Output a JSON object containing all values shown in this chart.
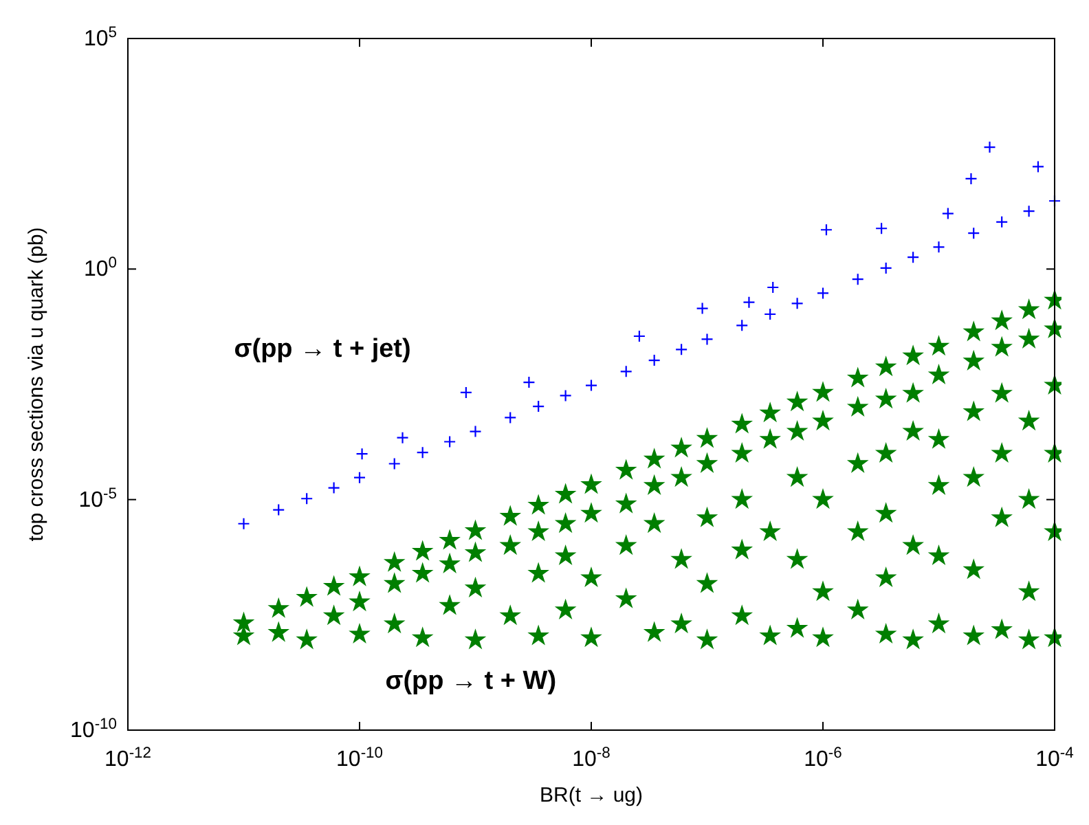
{
  "chart_data": {
    "type": "scatter",
    "xlabel": "BR(t → ug)",
    "ylabel": "top cross sections via u quark (pb)",
    "log": "xy",
    "xlim": [
      1e-12,
      0.0001
    ],
    "xticks": [
      {
        "value": 1e-12,
        "label": "10$^{-12}$"
      },
      {
        "value": 1e-10,
        "label": "10$^{-10}$"
      },
      {
        "value": 1e-08,
        "label": "10$^{-8}$"
      },
      {
        "value": 1e-06,
        "label": "10$^{-6}$"
      },
      {
        "value": 0.0001,
        "label": "10$^{-4}$"
      }
    ],
    "ylim": [
      1e-10,
      100000.0
    ],
    "yticks": [
      {
        "value": 1e-10,
        "label": "10$^{-10}$"
      },
      {
        "value": 1e-05,
        "label": "10$^{-5}$"
      },
      {
        "value": 1,
        "label": "10$^{0}$"
      },
      {
        "value": 100000.0,
        "label": "10$^{5}$"
      }
    ],
    "grid": false,
    "series": [
      {
        "name": "σ(pp → t + jet)",
        "color": "#0000ff",
        "marker": "cross",
        "x": [
          1e-11,
          2e-11,
          3.5e-11,
          6e-11,
          1e-10,
          2e-10,
          3.5e-10,
          6e-10,
          1e-09,
          2e-09,
          3.5e-09,
          6e-09,
          1e-08,
          2e-08,
          3.5e-08,
          6e-08,
          1e-07,
          2e-07,
          3.5e-07,
          6e-07,
          1e-06,
          2e-06,
          3.5e-06,
          6e-06,
          1e-05,
          2e-05,
          3.5e-05,
          6e-05,
          0.0001,
          2.75e-05,
          1.9e-05,
          7.2e-05,
          1.07e-06,
          3.2e-06,
          9.1e-08,
          2.6e-08,
          8.3e-10,
          2.9e-09,
          1.05e-10,
          2.35e-10,
          3.7e-07,
          2.3e-07,
          1.2e-05
        ],
        "values": [
          3e-06,
          6e-06,
          1.05e-05,
          1.8e-05,
          3e-05,
          6e-05,
          0.000105,
          0.00018,
          0.0003,
          0.0006,
          0.00105,
          0.0018,
          0.003,
          0.006,
          0.0105,
          0.018,
          0.03,
          0.06,
          0.105,
          0.18,
          0.3,
          0.6,
          1.05,
          1.8,
          3,
          6,
          10.5,
          18,
          30,
          440,
          91,
          166,
          7.1,
          7.6,
          0.14,
          0.035,
          0.0021,
          0.0035,
          9.8e-05,
          0.00022,
          0.4,
          0.19,
          16
        ]
      },
      {
        "name": "σ(pp → t + W)",
        "color": "#007f00",
        "marker": "star",
        "x": [
          1e-11,
          1e-11,
          2e-11,
          2e-11,
          3.5e-11,
          3.5e-11,
          6e-11,
          6e-11,
          1e-10,
          1e-10,
          1e-10,
          2e-10,
          2e-10,
          2e-10,
          3.5e-10,
          3.5e-10,
          3.5e-10,
          6e-10,
          6e-10,
          6e-10,
          1e-09,
          1e-09,
          1e-09,
          1e-09,
          2e-09,
          2e-09,
          2e-09,
          3.5e-09,
          3.5e-09,
          3.5e-09,
          3.5e-09,
          6e-09,
          6e-09,
          6e-09,
          6e-09,
          1e-08,
          1e-08,
          1e-08,
          1e-08,
          2e-08,
          2e-08,
          2e-08,
          2e-08,
          3.5e-08,
          3.5e-08,
          3.5e-08,
          3.5e-08,
          6e-08,
          6e-08,
          6e-08,
          6e-08,
          1e-07,
          1e-07,
          1e-07,
          1e-07,
          1e-07,
          2e-07,
          2e-07,
          2e-07,
          2e-07,
          2e-07,
          3.5e-07,
          3.5e-07,
          3.5e-07,
          3.5e-07,
          6e-07,
          6e-07,
          6e-07,
          6e-07,
          6e-07,
          1e-06,
          1e-06,
          1e-06,
          1e-06,
          1e-06,
          2e-06,
          2e-06,
          2e-06,
          2e-06,
          2e-06,
          3.5e-06,
          3.5e-06,
          3.5e-06,
          3.5e-06,
          3.5e-06,
          3.5e-06,
          6e-06,
          6e-06,
          6e-06,
          6e-06,
          6e-06,
          1e-05,
          1e-05,
          1e-05,
          1e-05,
          1e-05,
          1e-05,
          2e-05,
          2e-05,
          2e-05,
          2e-05,
          2e-05,
          2e-05,
          3.5e-05,
          3.5e-05,
          3.5e-05,
          3.5e-05,
          3.5e-05,
          3.5e-05,
          6e-05,
          6e-05,
          6e-05,
          6e-05,
          6e-05,
          6e-05,
          0.0001,
          0.0001,
          0.0001,
          0.0001,
          0.0001,
          0.0001
        ],
        "values": [
          2.1e-08,
          1.1e-08,
          4.3e-08,
          1.3e-08,
          7.5e-08,
          9e-09,
          1.3e-07,
          3e-08,
          2.1e-07,
          1.2e-08,
          6e-08,
          4.3e-07,
          1.5e-07,
          2e-08,
          7.5e-07,
          2.5e-07,
          1e-08,
          1.3e-06,
          4e-07,
          5e-08,
          2.1e-06,
          7e-07,
          1.2e-07,
          9e-09,
          4.3e-06,
          1e-06,
          3e-08,
          7.5e-06,
          2e-06,
          2.5e-07,
          1.1e-08,
          1.3e-05,
          3e-06,
          6e-07,
          4e-08,
          2.1e-05,
          5e-06,
          2e-07,
          1e-08,
          4.3e-05,
          8e-06,
          1e-06,
          7e-08,
          7.5e-05,
          2e-05,
          3e-06,
          1.3e-08,
          0.00013,
          3e-05,
          5e-07,
          2e-08,
          0.00021,
          6e-05,
          4e-06,
          1.5e-07,
          9e-09,
          0.00043,
          0.0001,
          1e-05,
          8e-07,
          3e-08,
          0.00075,
          0.0002,
          2e-06,
          1.1e-08,
          0.0013,
          0.0003,
          3e-05,
          5e-07,
          1.6e-08,
          0.0021,
          0.0005,
          1e-05,
          1e-07,
          1e-08,
          0.0043,
          0.001,
          6e-05,
          2e-06,
          4e-08,
          0.0075,
          0.0015,
          0.0001,
          5e-06,
          2e-07,
          1.2e-08,
          0.013,
          0.002,
          0.0003,
          1e-06,
          9e-09,
          0.021,
          0.005,
          0.0002,
          2e-05,
          6e-07,
          2e-08,
          0.043,
          0.01,
          0.0008,
          3e-05,
          3e-07,
          1.1e-08,
          0.075,
          0.02,
          0.002,
          0.0001,
          4e-06,
          1.5e-08,
          0.13,
          0.03,
          0.0005,
          1e-05,
          1e-07,
          9e-09,
          0.21,
          0.05,
          0.003,
          0.0001,
          2e-06,
          1e-08
        ]
      }
    ]
  }
}
